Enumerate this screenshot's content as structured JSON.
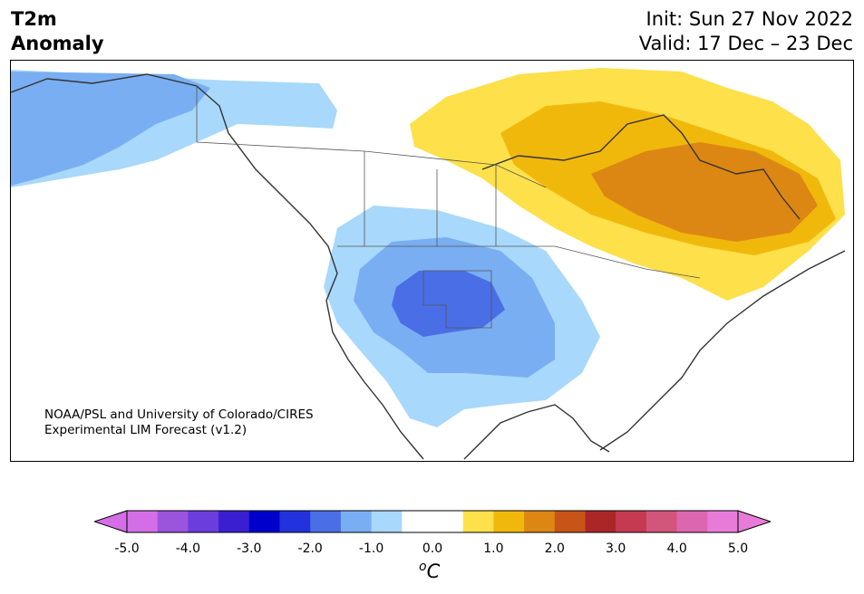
{
  "header": {
    "title_line1": "T2m",
    "title_line2": "Anomaly",
    "init": "Init: Sun 27 Nov 2022",
    "valid": "Valid: 17 Dec – 23 Dec"
  },
  "credit": {
    "line1": "NOAA/PSL and University of Colorado/CIRES",
    "line2": "Experimental LIM Forecast (v1.2)"
  },
  "colorbar": {
    "colors": [
      "#d46ee6",
      "#9b54dc",
      "#6a3ddc",
      "#3a1fd0",
      "#0000cc",
      "#2233dd",
      "#4a6ee6",
      "#79aef2",
      "#a8d8fb",
      "#ffffff",
      "#ffffff",
      "#fde04a",
      "#f1b80c",
      "#dc8713",
      "#c95418",
      "#ab2727",
      "#c43a50",
      "#d2557c",
      "#dd66b0",
      "#e97bd8"
    ],
    "extend_low": "#d46ee6",
    "extend_high": "#e97bd8",
    "ticks": [
      "-5.0",
      "-4.0",
      "-3.0",
      "-2.0",
      "-1.0",
      "0.0",
      "1.0",
      "2.0",
      "3.0",
      "4.0",
      "5.0"
    ],
    "unit_base": "C",
    "unit_sup": "o"
  },
  "anomaly_colors": {
    "cold_1": "#a8d8fb",
    "cold_2": "#79aef2",
    "cold_3": "#4a6ee6",
    "warm_1": "#fde04a",
    "warm_2": "#f1b80c",
    "warm_3": "#dc8713"
  }
}
